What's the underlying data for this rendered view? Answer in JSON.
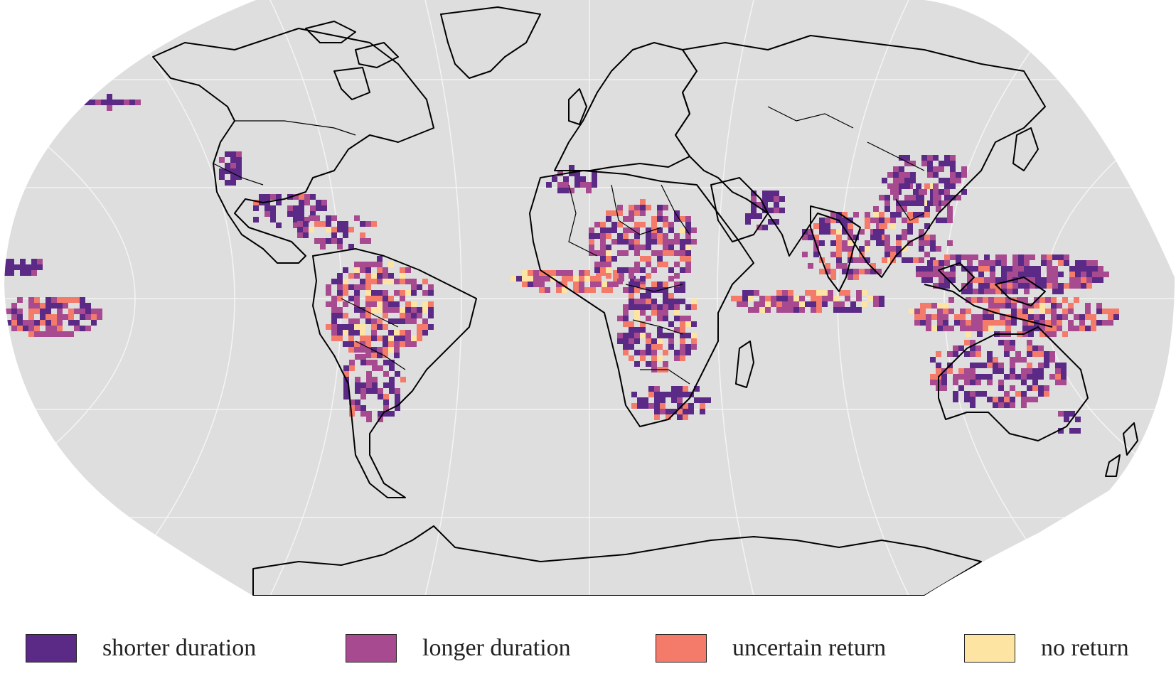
{
  "map": {
    "projection": "robinson",
    "background_color": "#dedede",
    "graticule_color": "#f4f4f4",
    "coastline_color": "#000000"
  },
  "legend": {
    "items": [
      {
        "label": "shorter duration",
        "color": "#5b2a86"
      },
      {
        "label": "longer duration",
        "color": "#a84a90"
      },
      {
        "label": "uncertain return",
        "color": "#f47a6a"
      },
      {
        "label": "no return",
        "color": "#fde4a2"
      }
    ]
  }
}
